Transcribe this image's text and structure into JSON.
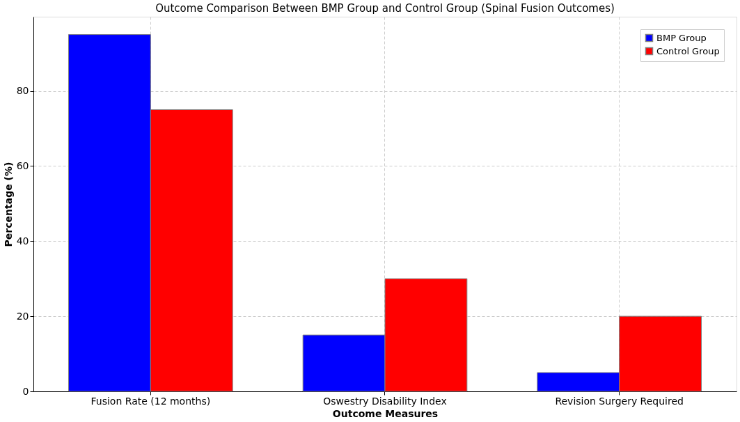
{
  "chart_data": {
    "type": "bar",
    "title": "Outcome Comparison Between BMP Group and Control Group (Spinal Fusion Outcomes)",
    "xlabel": "Outcome Measures",
    "ylabel": "Percentage (%)",
    "categories": [
      "Fusion Rate (12 months)",
      "Oswestry Disability Index",
      "Revision Surgery Required"
    ],
    "series": [
      {
        "name": "BMP Group",
        "color": "#0000ff",
        "values": [
          95,
          15,
          5
        ]
      },
      {
        "name": "Control Group",
        "color": "#ff0000",
        "values": [
          75,
          30,
          20
        ]
      }
    ],
    "ylim": [
      0,
      99.75
    ],
    "yticks": [
      0,
      20,
      40,
      60,
      80
    ],
    "grid": true,
    "legend": "top right"
  }
}
